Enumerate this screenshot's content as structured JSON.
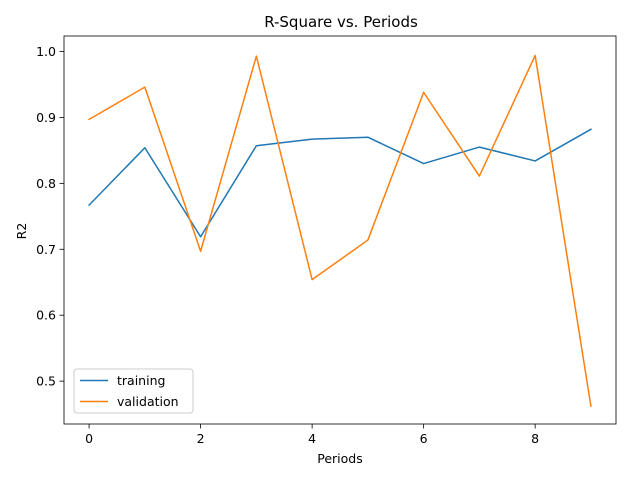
{
  "chart_data": {
    "type": "line",
    "title": "R-Square vs. Periods",
    "xlabel": "Periods",
    "ylabel": "R2",
    "x": [
      0,
      1,
      2,
      3,
      4,
      5,
      6,
      7,
      8,
      9
    ],
    "xlim": [
      -0.45,
      9.45
    ],
    "ylim": [
      0.435,
      1.0235
    ],
    "xticks": [
      0,
      2,
      4,
      6,
      8
    ],
    "yticks": [
      0.5,
      0.6,
      0.7,
      0.8,
      0.9,
      1.0
    ],
    "ytick_labels": [
      "0.5",
      "0.6",
      "0.7",
      "0.8",
      "0.9",
      "1.0"
    ],
    "grid": false,
    "legend_position": "lower-left",
    "series": [
      {
        "name": "training",
        "color": "#1f77b4",
        "values": [
          0.767,
          0.854,
          0.719,
          0.857,
          0.867,
          0.87,
          0.83,
          0.855,
          0.834,
          0.882
        ]
      },
      {
        "name": "validation",
        "color": "#ff7f0e",
        "values": [
          0.897,
          0.946,
          0.697,
          0.993,
          0.654,
          0.714,
          0.938,
          0.811,
          0.994,
          0.462
        ]
      }
    ]
  }
}
